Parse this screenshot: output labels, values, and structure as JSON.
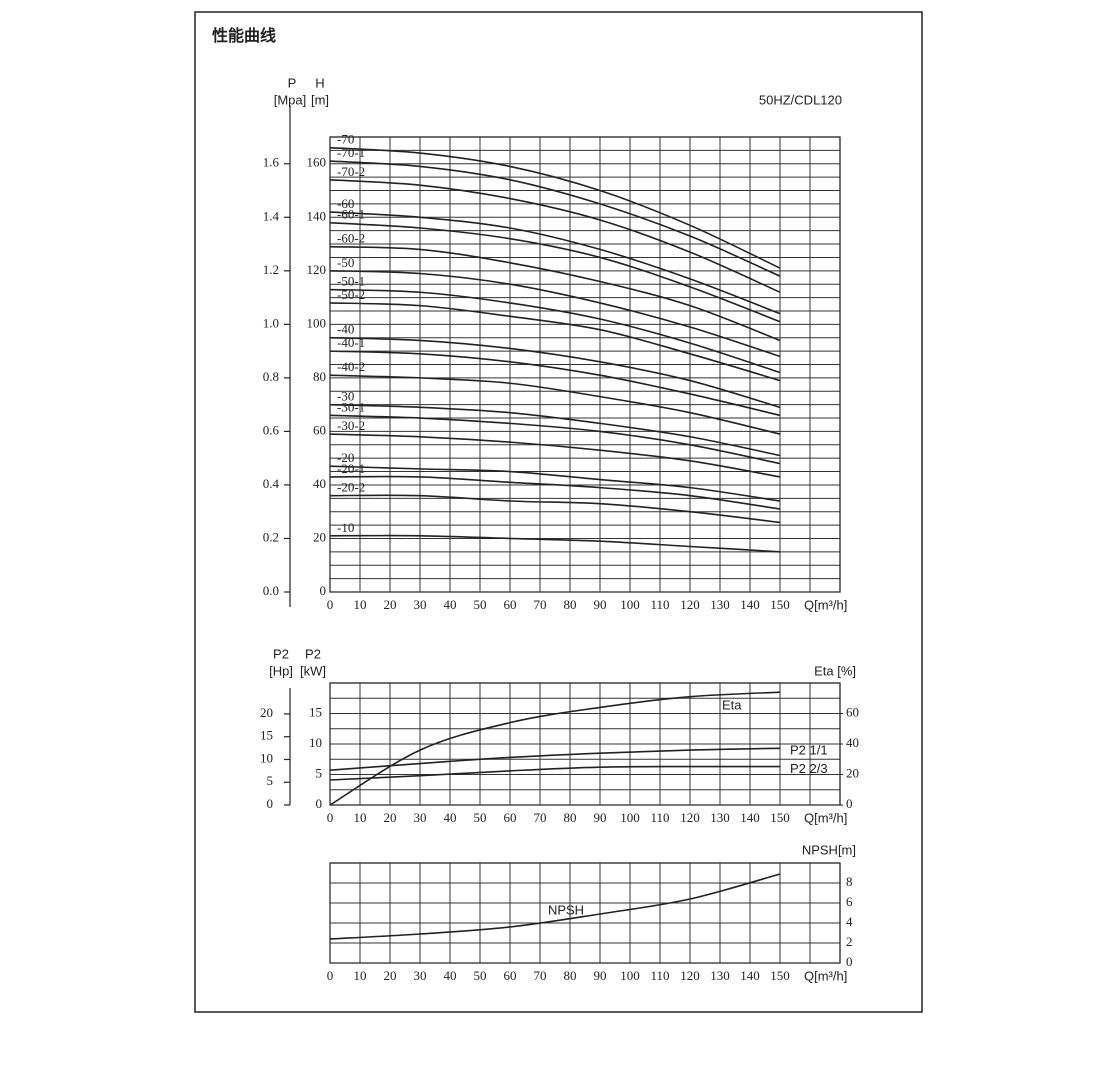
{
  "header": {
    "title": "性能曲线"
  },
  "chart_data": [
    {
      "type": "line",
      "annotation": "50HZ/CDL120",
      "xlabel": "Q[m³/h]",
      "ylabel": [
        "H",
        "[m]"
      ],
      "y2label": [
        "P",
        "[Mpa]"
      ],
      "x": [
        0,
        30,
        60,
        90,
        120,
        150
      ],
      "xlim": [
        0,
        170
      ],
      "xticks": [
        0,
        10,
        20,
        30,
        40,
        50,
        60,
        70,
        80,
        90,
        100,
        110,
        120,
        130,
        140,
        150
      ],
      "ylim": [
        0,
        170
      ],
      "yticks": [
        0,
        20,
        40,
        60,
        80,
        100,
        120,
        140,
        160
      ],
      "y2lim": [
        0,
        1.7
      ],
      "y2ticks": [
        {
          "value": 0,
          "label": "0.0"
        },
        0.2,
        0.4,
        0.6,
        0.8,
        {
          "value": 1,
          "label": "1.0"
        },
        1.2,
        1.4,
        1.6
      ],
      "grid": true,
      "xgrid_step": 10,
      "ygrid_step": 5,
      "series": [
        {
          "name": "-70",
          "color": "#222",
          "values": [
            166,
            164,
            159,
            150,
            137,
            121
          ]
        },
        {
          "name": "-70-1",
          "color": "#222",
          "values": [
            161,
            159,
            154,
            145,
            133,
            118
          ]
        },
        {
          "name": "-70-2",
          "color": "#222",
          "values": [
            154,
            152,
            147,
            139,
            127,
            112
          ]
        },
        {
          "name": "-60",
          "color": "#222",
          "values": [
            142,
            140,
            136,
            128,
            117,
            104
          ]
        },
        {
          "name": "-60-1",
          "color": "#222",
          "values": [
            138,
            136,
            132,
            125,
            114,
            101
          ]
        },
        {
          "name": "-60-2",
          "color": "#222",
          "values": [
            129,
            128,
            123,
            116,
            107,
            94
          ]
        },
        {
          "name": "-50",
          "color": "#222",
          "values": [
            120,
            119,
            115,
            108,
            99,
            88
          ]
        },
        {
          "name": "-50-1",
          "color": "#222",
          "values": [
            113,
            112,
            108,
            102,
            93,
            82
          ]
        },
        {
          "name": "-50-2",
          "color": "#222",
          "values": [
            108,
            107,
            103,
            98,
            89,
            79
          ]
        },
        {
          "name": "-40",
          "color": "#222",
          "values": [
            95,
            94,
            91,
            86,
            79,
            69
          ]
        },
        {
          "name": "-40-1",
          "color": "#222",
          "values": [
            90,
            89,
            86,
            81,
            74,
            66
          ]
        },
        {
          "name": "-40-2",
          "color": "#222",
          "values": [
            81,
            80,
            78,
            73,
            67,
            59
          ]
        },
        {
          "name": "-30",
          "color": "#222",
          "values": [
            70,
            69,
            67,
            63,
            58,
            51
          ]
        },
        {
          "name": "-30-1",
          "color": "#222",
          "values": [
            66,
            65,
            63,
            60,
            55,
            48
          ]
        },
        {
          "name": "-30-2",
          "color": "#222",
          "values": [
            59,
            58,
            56,
            53,
            49,
            43
          ]
        },
        {
          "name": "-20",
          "color": "#222",
          "values": [
            47,
            46,
            45,
            42,
            39,
            34
          ]
        },
        {
          "name": "-20-1",
          "color": "#222",
          "values": [
            43,
            43,
            41,
            39,
            36,
            31
          ]
        },
        {
          "name": "-20-2",
          "color": "#222",
          "values": [
            36,
            36,
            34,
            33,
            30,
            26
          ]
        },
        {
          "name": "-10",
          "color": "#222",
          "values": [
            21,
            21,
            20,
            19,
            17,
            15
          ]
        }
      ]
    },
    {
      "type": "line",
      "xlabel": "Q[m³/h]",
      "ylabel": [
        "P2",
        "[kW]"
      ],
      "y3label": [
        "P2",
        "[Hp]"
      ],
      "y2label": "Eta [%]",
      "x": [
        0,
        30,
        60,
        90,
        120,
        150
      ],
      "xlim": [
        0,
        170
      ],
      "xticks": [
        0,
        10,
        20,
        30,
        40,
        50,
        60,
        70,
        80,
        90,
        100,
        110,
        120,
        130,
        140,
        150
      ],
      "ylim": [
        0,
        20
      ],
      "yticks": [
        0,
        5,
        10,
        15
      ],
      "y2lim": [
        0,
        80
      ],
      "y2ticks": [
        0,
        20,
        40,
        60
      ],
      "y3lim": [
        0,
        26.8
      ],
      "y3ticks": [
        0,
        5,
        10,
        15,
        20
      ],
      "grid": true,
      "xgrid_step": 10,
      "ygrid_step": 2.5,
      "series": [
        {
          "name": "Eta",
          "color": "#222",
          "axis": "y2",
          "values": [
            0,
            36,
            54,
            64,
            71,
            74
          ]
        },
        {
          "name": "P2 1/1",
          "color": "#222",
          "values": [
            5.7,
            6.8,
            7.8,
            8.5,
            9.0,
            9.3
          ]
        },
        {
          "name": "P2 2/3",
          "color": "#222",
          "values": [
            4.1,
            4.8,
            5.6,
            6.2,
            6.3,
            6.3
          ]
        }
      ]
    },
    {
      "type": "line",
      "xlabel": "Q[m³/h]",
      "ylabel": "NPSH[m]",
      "x": [
        0,
        30,
        60,
        90,
        120,
        150
      ],
      "xlim": [
        0,
        170
      ],
      "xticks": [
        0,
        10,
        20,
        30,
        40,
        50,
        60,
        70,
        80,
        90,
        100,
        110,
        120,
        130,
        140,
        150
      ],
      "ylim": [
        0,
        10
      ],
      "yticks": [
        0,
        2,
        4,
        6,
        8
      ],
      "grid": true,
      "xgrid_step": 10,
      "ygrid_step": 2,
      "series": [
        {
          "name": "NPSH",
          "color": "#222",
          "values": [
            2.4,
            2.9,
            3.6,
            4.9,
            6.4,
            8.9
          ]
        }
      ]
    }
  ]
}
